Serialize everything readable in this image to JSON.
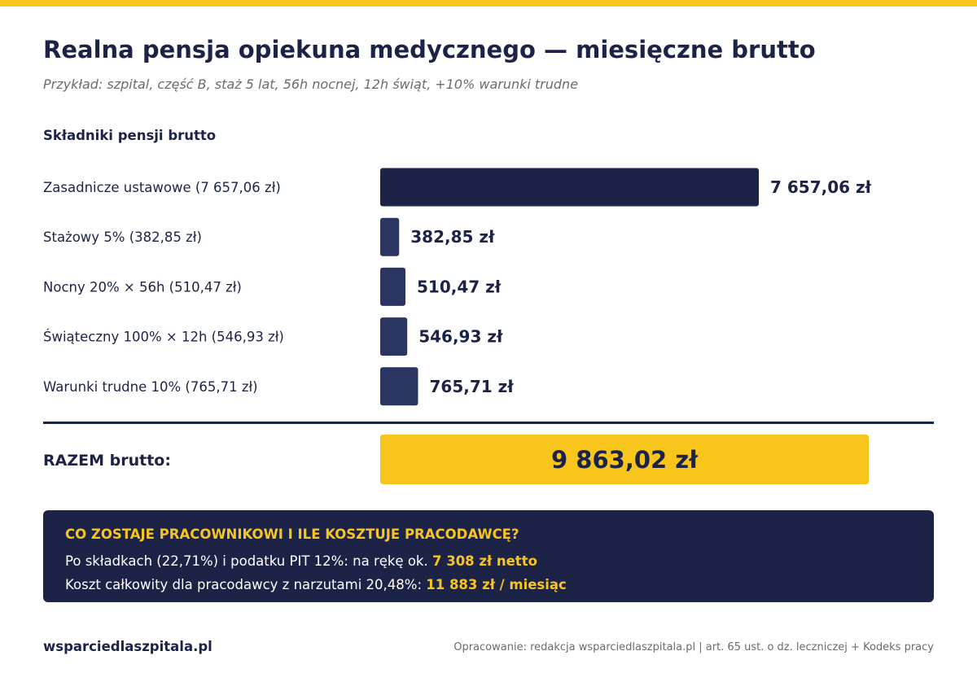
{
  "header": {
    "title": "Realna pensja opiekuna medycznego — miesięczne brutto",
    "subtitle": "Przykład: szpital, część B, staż 5 lat, 56h nocnej, 12h świąt, +10% warunki trudne"
  },
  "colors": {
    "accent": "#f8c51c",
    "navy": "#1c2347",
    "bar_secondary": "#2a3562"
  },
  "chart_data": {
    "type": "bar",
    "orientation": "horizontal",
    "title": "Składniki pensji brutto",
    "categories": [
      "Zasadnicze ustawowe (7 657,06 zł)",
      "Stażowy 5% (382,85 zł)",
      "Nocny 20% × 56h (510,47 zł)",
      "Świąteczny 100% × 12h (546,93 zł)",
      "Warunki trudne 10% (765,71 zł)"
    ],
    "values": [
      7657.06,
      382.85,
      510.47,
      546.93,
      765.71
    ],
    "value_labels": [
      "7 657,06 zł",
      "382,85 zł",
      "510,47 zł",
      "546,93 zł",
      "765,71 zł"
    ],
    "xlim": [
      0,
      7657.06
    ],
    "grid": false,
    "legend": "none"
  },
  "total": {
    "label": "RAZEM brutto:",
    "value": "9 863,02 zł"
  },
  "info": {
    "title": "CO ZOSTAJE PRACOWNIKOWI I ILE KOSZTUJE PRACODAWCĘ?",
    "line1_text": "Po składkach (22,71%) i podatku PIT 12%: na rękę ok. ",
    "line1_highlight": "7 308 zł netto",
    "line2_text": "Koszt całkowity dla pracodawcy z narzutami 20,48%: ",
    "line2_highlight": "11 883 zł / miesiąc"
  },
  "footer": {
    "site": "wsparciedlaszpitala.pl",
    "source": "Opracowanie: redakcja wsparciedlaszpitala.pl | art. 65 ust. o dz. leczniczej + Kodeks pracy"
  }
}
